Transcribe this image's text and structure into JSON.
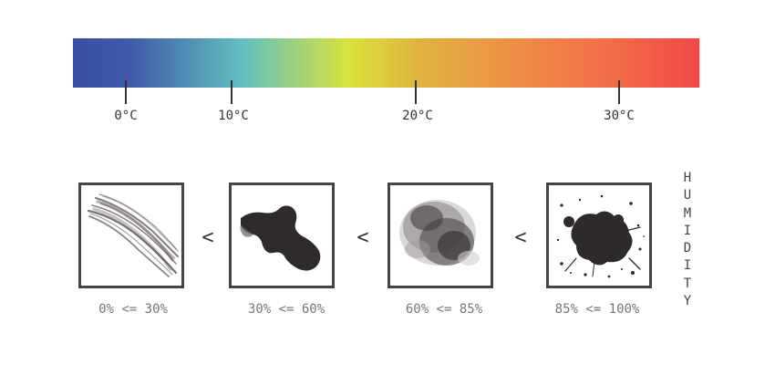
{
  "scale": {
    "colors": [
      "#3a4fa2",
      "#3f5aa8",
      "#62bfbf",
      "#d9e23c",
      "#e0b13f",
      "#f08a46",
      "#f36c48",
      "#f24848"
    ],
    "ticks": [
      {
        "label": "0°C",
        "value": 0
      },
      {
        "label": "10°C",
        "value": 10
      },
      {
        "label": "20°C",
        "value": 20
      },
      {
        "label": "30°C",
        "value": 30
      }
    ]
  },
  "humidity": {
    "title": "HUMIDITY",
    "comparator": "<",
    "levels": [
      {
        "range": "0% <= 30%",
        "brush": "dry-brush-stroke"
      },
      {
        "range": "30% <= 60%",
        "brush": "solid-wave-stroke"
      },
      {
        "range": "60% <= 85%",
        "brush": "watercolor-blot"
      },
      {
        "range": "85% <= 100%",
        "brush": "ink-splatter"
      }
    ]
  }
}
